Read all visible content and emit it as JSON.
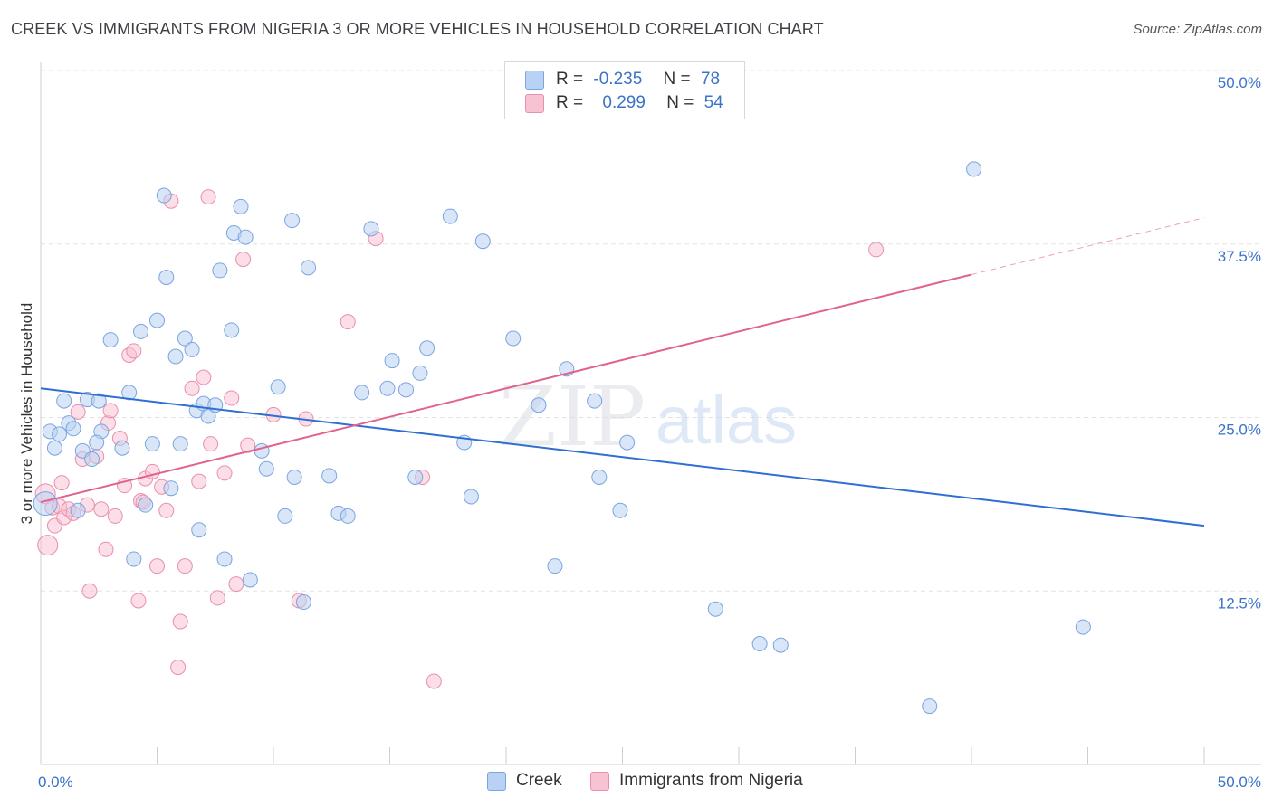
{
  "header": {
    "title": "CREEK VS IMMIGRANTS FROM NIGERIA 3 OR MORE VEHICLES IN HOUSEHOLD CORRELATION CHART",
    "source": "Source: ZipAtlas.com"
  },
  "watermark": {
    "zip": "ZIP",
    "atlas": "atlas"
  },
  "legend": {
    "rows": [
      {
        "r_label": "R =",
        "r_value": "-0.235",
        "n_label": "N =",
        "n_value": "78"
      },
      {
        "r_label": "R =",
        "r_value": "0.299",
        "n_label": "N =",
        "n_value": "54"
      }
    ]
  },
  "bottom_legend": {
    "creek": "Creek",
    "nigeria": "Immigrants from Nigeria"
  },
  "colors": {
    "creek_fill": "#b9d1f3",
    "creek_stroke": "#7aa5e0",
    "creek_line": "#2f6fd1",
    "nigeria_fill": "#f7c3d3",
    "nigeria_stroke": "#e88fad",
    "nigeria_line": "#e0628d",
    "tick_label": "#3a73c8"
  },
  "chart_data": {
    "type": "scatter",
    "title": "CREEK VS IMMIGRANTS FROM NIGERIA 3 OR MORE VEHICLES IN HOUSEHOLD CORRELATION CHART",
    "xlabel": "",
    "ylabel": "3 or more Vehicles in Household",
    "xlim": [
      0,
      50
    ],
    "ylim": [
      0,
      50
    ],
    "x_tick_labels": [
      "0.0%",
      "50.0%"
    ],
    "y_ticks": [
      12.5,
      25.0,
      37.5,
      50.0
    ],
    "y_tick_labels": [
      "12.5%",
      "25.0%",
      "37.5%",
      "50.0%"
    ],
    "grid": "horizontal dashed",
    "legend_position": "top-center",
    "series": [
      {
        "name": "Creek",
        "r": -0.235,
        "n": 78,
        "trend": {
          "x": [
            0,
            50
          ],
          "y": [
            27.1,
            17.2
          ]
        },
        "points": [
          [
            0.2,
            18.8
          ],
          [
            0.4,
            24.0
          ],
          [
            0.6,
            22.8
          ],
          [
            0.8,
            23.8
          ],
          [
            1.0,
            26.2
          ],
          [
            1.2,
            24.6
          ],
          [
            1.4,
            24.2
          ],
          [
            1.6,
            18.3
          ],
          [
            1.8,
            22.6
          ],
          [
            2.0,
            26.3
          ],
          [
            2.2,
            22.0
          ],
          [
            2.5,
            26.2
          ],
          [
            2.6,
            24.0
          ],
          [
            2.4,
            23.2
          ],
          [
            3.0,
            30.6
          ],
          [
            3.5,
            22.8
          ],
          [
            3.8,
            26.8
          ],
          [
            4.0,
            14.8
          ],
          [
            4.3,
            31.2
          ],
          [
            4.5,
            18.7
          ],
          [
            4.8,
            23.1
          ],
          [
            5.0,
            32.0
          ],
          [
            5.3,
            41.0
          ],
          [
            5.4,
            35.1
          ],
          [
            5.6,
            19.9
          ],
          [
            5.8,
            29.4
          ],
          [
            6.0,
            23.1
          ],
          [
            6.2,
            30.7
          ],
          [
            6.5,
            29.9
          ],
          [
            6.7,
            25.5
          ],
          [
            6.8,
            16.9
          ],
          [
            7.0,
            26.0
          ],
          [
            7.2,
            25.1
          ],
          [
            7.5,
            25.9
          ],
          [
            7.7,
            35.6
          ],
          [
            7.9,
            14.8
          ],
          [
            8.2,
            31.3
          ],
          [
            8.3,
            38.3
          ],
          [
            8.6,
            40.2
          ],
          [
            8.8,
            38.0
          ],
          [
            9.0,
            13.3
          ],
          [
            9.5,
            22.6
          ],
          [
            9.7,
            21.3
          ],
          [
            10.2,
            27.2
          ],
          [
            10.5,
            17.9
          ],
          [
            10.8,
            39.2
          ],
          [
            10.9,
            20.7
          ],
          [
            11.3,
            11.7
          ],
          [
            11.5,
            35.8
          ],
          [
            12.4,
            20.8
          ],
          [
            12.8,
            18.1
          ],
          [
            13.2,
            17.9
          ],
          [
            13.8,
            26.8
          ],
          [
            14.2,
            38.6
          ],
          [
            14.9,
            27.1
          ],
          [
            15.1,
            29.1
          ],
          [
            15.7,
            27.0
          ],
          [
            16.1,
            20.7
          ],
          [
            16.3,
            28.2
          ],
          [
            16.6,
            30.0
          ],
          [
            17.6,
            39.5
          ],
          [
            18.2,
            23.2
          ],
          [
            18.5,
            19.3
          ],
          [
            19.0,
            37.7
          ],
          [
            20.3,
            30.7
          ],
          [
            21.4,
            25.9
          ],
          [
            22.1,
            14.3
          ],
          [
            22.6,
            28.5
          ],
          [
            23.8,
            26.2
          ],
          [
            24.0,
            20.7
          ],
          [
            24.9,
            18.3
          ],
          [
            25.2,
            23.2
          ],
          [
            29.0,
            11.2
          ],
          [
            30.9,
            8.7
          ],
          [
            31.8,
            8.6
          ],
          [
            40.1,
            42.9
          ],
          [
            44.8,
            9.9
          ],
          [
            38.2,
            4.2
          ]
        ]
      },
      {
        "name": "Immigrants from Nigeria",
        "r": 0.299,
        "n": 54,
        "trend": {
          "x": [
            0,
            40
          ],
          "y": [
            18.9,
            35.3
          ]
        },
        "trend_extension": {
          "x": [
            40,
            50
          ],
          "y": [
            35.3,
            39.4
          ]
        },
        "points": [
          [
            0.2,
            19.5
          ],
          [
            0.3,
            15.8
          ],
          [
            0.5,
            18.5
          ],
          [
            0.6,
            17.2
          ],
          [
            0.8,
            18.6
          ],
          [
            0.9,
            20.3
          ],
          [
            1.0,
            17.8
          ],
          [
            1.2,
            18.4
          ],
          [
            1.4,
            18.1
          ],
          [
            1.6,
            25.4
          ],
          [
            1.8,
            22.0
          ],
          [
            2.0,
            18.7
          ],
          [
            2.1,
            12.5
          ],
          [
            2.4,
            22.2
          ],
          [
            2.6,
            18.4
          ],
          [
            2.8,
            15.5
          ],
          [
            2.9,
            24.6
          ],
          [
            3.0,
            25.5
          ],
          [
            3.2,
            17.9
          ],
          [
            3.4,
            23.5
          ],
          [
            3.6,
            20.1
          ],
          [
            3.8,
            29.5
          ],
          [
            4.0,
            29.8
          ],
          [
            4.2,
            11.8
          ],
          [
            4.3,
            19.0
          ],
          [
            4.4,
            18.9
          ],
          [
            4.5,
            20.6
          ],
          [
            4.8,
            21.1
          ],
          [
            5.0,
            14.3
          ],
          [
            5.2,
            20.0
          ],
          [
            5.4,
            18.3
          ],
          [
            5.6,
            40.6
          ],
          [
            5.9,
            7.0
          ],
          [
            6.0,
            10.3
          ],
          [
            6.2,
            14.3
          ],
          [
            6.5,
            27.1
          ],
          [
            6.8,
            20.4
          ],
          [
            7.0,
            27.9
          ],
          [
            7.2,
            40.9
          ],
          [
            7.3,
            23.1
          ],
          [
            7.6,
            12.0
          ],
          [
            7.9,
            21.0
          ],
          [
            8.2,
            26.4
          ],
          [
            8.4,
            13.0
          ],
          [
            8.7,
            36.4
          ],
          [
            8.9,
            23.0
          ],
          [
            10.0,
            25.2
          ],
          [
            11.1,
            11.8
          ],
          [
            11.4,
            24.9
          ],
          [
            13.2,
            31.9
          ],
          [
            14.4,
            37.9
          ],
          [
            16.4,
            20.7
          ],
          [
            16.9,
            6.0
          ],
          [
            35.9,
            37.1
          ]
        ]
      }
    ]
  }
}
